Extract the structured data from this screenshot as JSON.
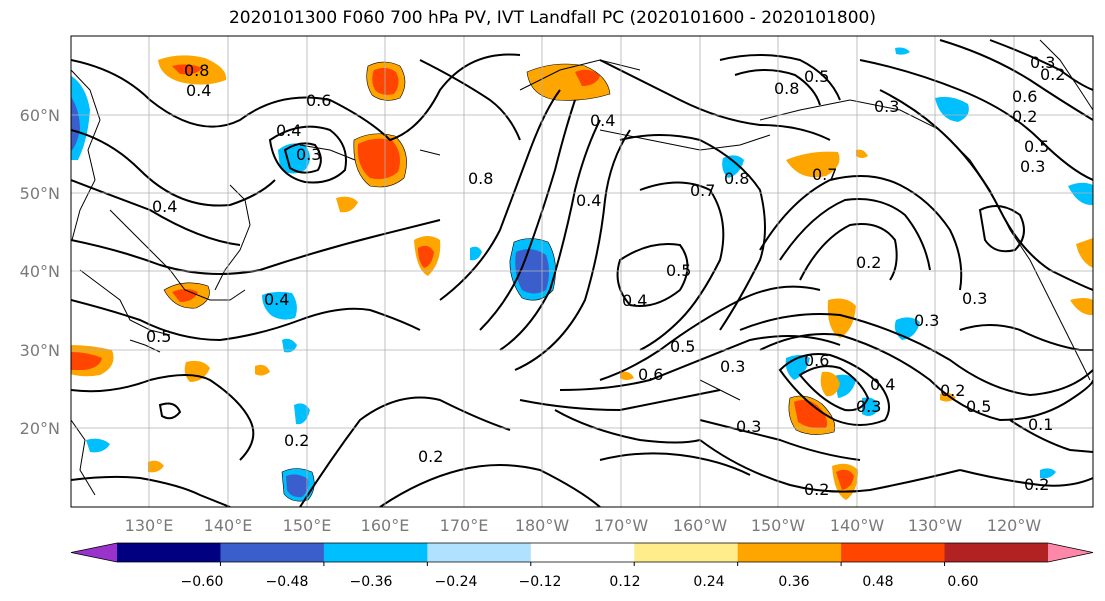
{
  "title": "2020101300 F060 700 hPa PV, IVT Landfall PC (2020101600 - 2020101800)",
  "lat_labels": [
    "60°N",
    "50°N",
    "40°N",
    "30°N",
    "20°N"
  ],
  "lon_labels": [
    "130°E",
    "140°E",
    "150°E",
    "160°E",
    "170°E",
    "180°W",
    "170°W",
    "160°W",
    "150°W",
    "140°W",
    "130°W",
    "120°W"
  ],
  "colorbar": {
    "colors": [
      "#9933cc",
      "#000080",
      "#3a5fcd",
      "#00bfff",
      "#b0e2ff",
      "#ffffff",
      "#ffec8b",
      "#ffa500",
      "#ff4500",
      "#b22222",
      "#ff88aa"
    ],
    "tick_labels": [
      "−0.60",
      "−0.48",
      "−0.36",
      "−0.24",
      "−0.12",
      "0.12",
      "0.24",
      "0.36",
      "0.48",
      "0.60"
    ]
  },
  "contour_labels": [
    "0.8",
    "0.4",
    "0.3",
    "0.6",
    "0.4",
    "0.4",
    "0.5",
    "0.4",
    "0.8",
    "0.2",
    "0.4",
    "0.5",
    "0.6",
    "0.5",
    "0.4",
    "0.3",
    "0.7",
    "0.8",
    "0.3",
    "0.8",
    "0.5",
    "0.3",
    "0.6",
    "0.5",
    "0.3",
    "0.2",
    "0.3",
    "0.3",
    "0.2",
    "0.4",
    "0.2",
    "0.5",
    "0.3",
    "0.2",
    "0.2",
    "0.3",
    "0.2",
    "0.1",
    "0.2",
    "0.6",
    "0.4",
    "0.7"
  ]
}
